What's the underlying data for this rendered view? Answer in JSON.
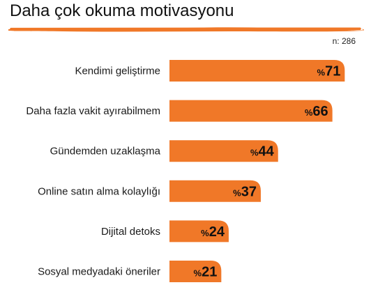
{
  "header": {
    "title": "Daha çok okuma motivasyonu",
    "sample_note": "n: 286"
  },
  "colors": {
    "accent": "#F07828",
    "text": "#1a1a1a"
  },
  "chart_data": {
    "type": "bar",
    "orientation": "horizontal",
    "title": "Daha çok okuma motivasyonu",
    "xlabel": "",
    "ylabel": "",
    "xlim": [
      0,
      100
    ],
    "grid": false,
    "legend": "none",
    "value_prefix": "%",
    "categories": [
      "Kendimi geliştirme",
      "Daha fazla vakit ayırabilmem",
      "Gündemden uzaklaşma",
      "Online satın alma kolaylığı",
      "Dijital detoks",
      "Sosyal medyadaki öneriler"
    ],
    "values": [
      71,
      66,
      44,
      37,
      24,
      21
    ]
  }
}
